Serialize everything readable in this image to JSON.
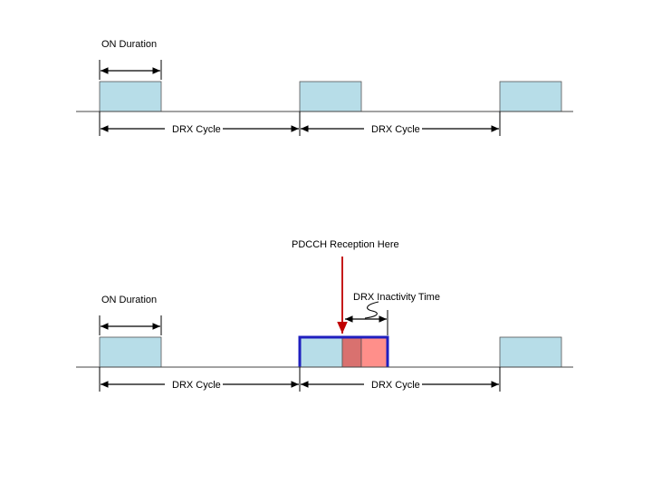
{
  "top": {
    "on_duration_label": "ON Duration",
    "drx_cycle_label_1": "DRX Cycle",
    "drx_cycle_label_2": "DRX Cycle"
  },
  "bottom": {
    "pdcch_label": "PDCCH Reception Here",
    "on_duration_label": "ON Duration",
    "inactivity_label": "DRX Inactivity Time",
    "drx_cycle_label_1": "DRX Cycle",
    "drx_cycle_label_2": "DRX Cycle"
  },
  "colors": {
    "on_box_fill": "#b7dde8",
    "inactivity_fill_dark": "#d9716f",
    "inactivity_fill_light": "#ff8f8a",
    "highlight_border": "#1f1fbf",
    "pdcch_arrow": "#c00000"
  }
}
